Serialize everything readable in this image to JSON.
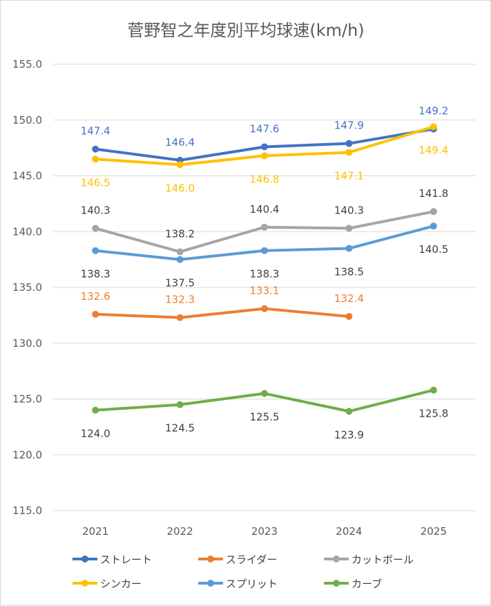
{
  "chart_data": {
    "type": "line",
    "title": "菅野智之年度別平均球速(km/h)",
    "categories": [
      "2021",
      "2022",
      "2023",
      "2024",
      "2025"
    ],
    "y_ticks": [
      "115.0",
      "120.0",
      "125.0",
      "130.0",
      "135.0",
      "140.0",
      "145.0",
      "150.0",
      "155.0"
    ],
    "ylim": [
      115,
      155
    ],
    "grid": true,
    "legend_position": "bottom",
    "series": [
      {
        "name": "ストレート",
        "color": "#4472C4",
        "values": [
          147.4,
          146.4,
          147.6,
          147.9,
          149.2
        ],
        "labels": [
          "147.4",
          "146.4",
          "147.6",
          "147.9",
          "149.2"
        ],
        "label_side": [
          "above",
          "above",
          "above",
          "above",
          "above"
        ]
      },
      {
        "name": "スライダー",
        "color": "#ED7D31",
        "values": [
          132.6,
          132.3,
          133.1,
          132.4,
          null
        ],
        "labels": [
          "132.6",
          "132.3",
          "133.1",
          "132.4",
          null
        ],
        "label_side": [
          "above",
          "above",
          "above",
          "above",
          "above"
        ]
      },
      {
        "name": "カットボール",
        "color": "#A5A5A5",
        "values": [
          140.3,
          138.2,
          140.4,
          140.3,
          141.8
        ],
        "labels": [
          "140.3",
          "138.2",
          "140.4",
          "140.3",
          "141.8"
        ],
        "label_side": [
          "above",
          "above",
          "above",
          "above",
          "above"
        ]
      },
      {
        "name": "シンカー",
        "color": "#FFC000",
        "values": [
          146.5,
          146.0,
          146.8,
          147.1,
          149.4
        ],
        "labels": [
          "146.5",
          "146.0",
          "146.8",
          "147.1",
          "149.4"
        ],
        "label_side": [
          "below",
          "below",
          "below",
          "below",
          "below"
        ]
      },
      {
        "name": "スプリット",
        "color": "#5B9BD5",
        "values": [
          138.3,
          137.5,
          138.3,
          138.5,
          140.5
        ],
        "labels": [
          "138.3",
          "137.5",
          "138.3",
          "138.5",
          "140.5"
        ],
        "label_side": [
          "below",
          "below",
          "below",
          "below",
          "below"
        ]
      },
      {
        "name": "カーブ",
        "color": "#70AD47",
        "values": [
          124.0,
          124.5,
          125.5,
          123.9,
          125.8
        ],
        "labels": [
          "124.0",
          "124.5",
          "125.5",
          "123.9",
          "125.8"
        ],
        "label_side": [
          "below",
          "below",
          "below",
          "below",
          "below"
        ]
      }
    ]
  }
}
